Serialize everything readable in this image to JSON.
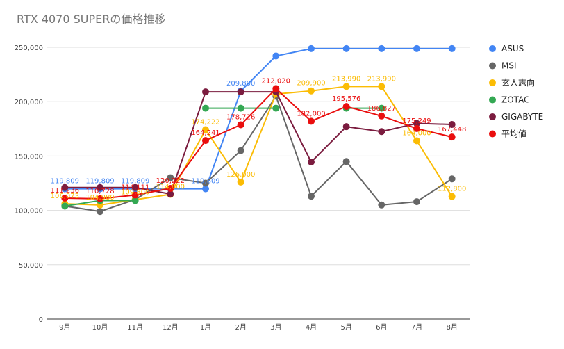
{
  "chart_data": {
    "type": "line",
    "title": "RTX 4070 SUPERの価格推移",
    "xlabel": "",
    "ylabel": "",
    "categories": [
      "9月",
      "10月",
      "11月",
      "12月",
      "1月",
      "2月",
      "3月",
      "4月",
      "5月",
      "6月",
      "7月",
      "8月"
    ],
    "ylim": [
      0,
      250000
    ],
    "yticks": [
      {
        "value": 0,
        "label": "0"
      },
      {
        "value": 50000,
        "label": "50,000"
      },
      {
        "value": 100000,
        "label": "100,000"
      },
      {
        "value": 150000,
        "label": "150,000"
      },
      {
        "value": 200000,
        "label": "200,000"
      },
      {
        "value": 250000,
        "label": "250,000"
      }
    ],
    "grid": true,
    "legend_position": "right",
    "series": [
      {
        "name": "ASUS",
        "color": "#4285f4",
        "values": [
          119809,
          119809,
          119809,
          119809,
          119809,
          209800,
          242000,
          248800,
          248800,
          248800,
          248800,
          248800
        ],
        "labels": [
          "119,809",
          "119,809",
          "119,809",
          "",
          "119,809",
          "209,800",
          "",
          "",
          "",
          "",
          "",
          ""
        ]
      },
      {
        "name": "MSI",
        "color": "#666666",
        "values": [
          104000,
          99000,
          110000,
          130000,
          125000,
          155000,
          205000,
          113000,
          145000,
          105000,
          108000,
          129000
        ],
        "labels": [
          "",
          "",
          "",
          "",
          "",
          "",
          "",
          "",
          "",
          "",
          "",
          ""
        ]
      },
      {
        "name": "玄人志向",
        "color": "#fbbc04",
        "values": [
          106073,
          104980,
          109800,
          114800,
          174222,
          126000,
          207000,
          209900,
          213990,
          213990,
          164000,
          112800
        ],
        "labels": [
          "106,073",
          "104,980",
          "109,800",
          "114,800",
          "174,222",
          "126,000",
          "",
          "209,900",
          "213,990",
          "213,990",
          "164,000",
          "112,800"
        ]
      },
      {
        "name": "ZOTAC",
        "color": "#34a853",
        "values": [
          104000,
          109000,
          109000,
          null,
          194000,
          194000,
          194000,
          null,
          194000,
          194000,
          null,
          null
        ],
        "labels": [
          "",
          "",
          "",
          "",
          "",
          "",
          "",
          "",
          "",
          "",
          "",
          ""
        ]
      },
      {
        "name": "GIGABYTE",
        "color": "#7b1c3f",
        "values": [
          121000,
          121000,
          121000,
          115000,
          209000,
          209000,
          209000,
          144500,
          177000,
          172500,
          180000,
          179000
        ],
        "labels": [
          "",
          "",
          "",
          "",
          "",
          "",
          "",
          "",
          "",
          "",
          "",
          ""
        ]
      },
      {
        "name": "平均値",
        "color": "#ea0e0e",
        "values": [
          111236,
          110728,
          114111,
          120222,
          164241,
          178726,
          212020,
          182000,
          195576,
          186827,
          175249,
          167448
        ],
        "labels": [
          "111,236",
          "110,728",
          "114,111",
          "120,222",
          "164,241",
          "178,726",
          "212,020",
          "182,000",
          "195,576",
          "186,827",
          "175,249",
          "167,448"
        ]
      }
    ]
  }
}
